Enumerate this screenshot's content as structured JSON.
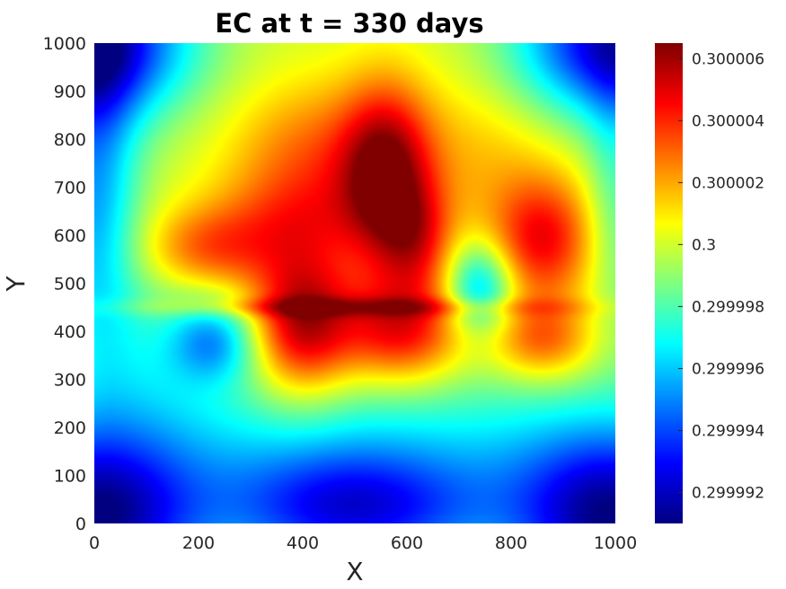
{
  "chart_data": {
    "type": "heatmap",
    "title": "EC at t = 330 days",
    "xlabel": "X",
    "ylabel": "Y",
    "xlim": [
      0,
      1000
    ],
    "ylim": [
      0,
      1000
    ],
    "x_ticks": [
      0,
      200,
      400,
      600,
      800,
      1000
    ],
    "y_ticks": [
      0,
      100,
      200,
      300,
      400,
      500,
      600,
      700,
      800,
      900,
      1000
    ],
    "colormap": "jet",
    "colorbar": {
      "min": 0.299991,
      "max": 0.3000065,
      "ticks": [
        {
          "value": 0.299992,
          "label": "0.299992"
        },
        {
          "value": 0.299994,
          "label": "0.299994"
        },
        {
          "value": 0.299996,
          "label": "0.299996"
        },
        {
          "value": 0.299998,
          "label": "0.299998"
        },
        {
          "value": 0.3,
          "label": "0.3"
        },
        {
          "value": 0.300002,
          "label": "0.300002"
        },
        {
          "value": 0.300004,
          "label": "0.300004"
        },
        {
          "value": 0.300006,
          "label": "0.300006"
        }
      ]
    },
    "field": {
      "base": 0.3,
      "features": [
        {
          "x": 400,
          "y": 420,
          "sx": 70,
          "sy": 110,
          "amp": 6e-06
        },
        {
          "x": 590,
          "y": 400,
          "sx": 85,
          "sy": 80,
          "amp": 5e-06
        },
        {
          "x": 560,
          "y": 720,
          "sx": 60,
          "sy": 130,
          "amp": 5.5e-06
        },
        {
          "x": 620,
          "y": 590,
          "sx": 50,
          "sy": 80,
          "amp": 3e-06
        },
        {
          "x": 430,
          "y": 760,
          "sx": 120,
          "sy": 110,
          "amp": 3e-06
        },
        {
          "x": 860,
          "y": 590,
          "sx": 70,
          "sy": 90,
          "amp": 4.5e-06
        },
        {
          "x": 860,
          "y": 380,
          "sx": 70,
          "sy": 60,
          "amp": 3.5e-06
        },
        {
          "x": 220,
          "y": 570,
          "sx": 90,
          "sy": 60,
          "amp": 3e-06
        },
        {
          "x": 380,
          "y": 630,
          "sx": 120,
          "sy": 70,
          "amp": 2e-06
        },
        {
          "x": 740,
          "y": 760,
          "sx": 120,
          "sy": 120,
          "amp": 1.5e-06
        },
        {
          "x": 480,
          "y": 450,
          "sx": 300,
          "sy": 14,
          "amp": 2e-06
        },
        {
          "x": 740,
          "y": 490,
          "sx": 45,
          "sy": 65,
          "amp": -4.5e-06
        },
        {
          "x": 230,
          "y": 380,
          "sx": 60,
          "sy": 60,
          "amp": -4e-06
        },
        {
          "x": 100,
          "y": 370,
          "sx": 90,
          "sy": 130,
          "amp": -1.5e-06
        },
        {
          "x": 0,
          "y": 0,
          "sx": 140,
          "sy": 130,
          "amp": -8e-06
        },
        {
          "x": 1000,
          "y": 0,
          "sx": 140,
          "sy": 130,
          "amp": -8e-06
        },
        {
          "x": 0,
          "y": 1000,
          "sx": 130,
          "sy": 110,
          "amp": -8e-06
        },
        {
          "x": 1000,
          "y": 1000,
          "sx": 130,
          "sy": 110,
          "amp": -8e-06
        },
        {
          "x": 500,
          "y": 20,
          "sx": 180,
          "sy": 90,
          "amp": -6e-06
        },
        {
          "x": 0,
          "y": 700,
          "sx": 60,
          "sy": 250,
          "amp": -4.5e-06
        },
        {
          "x": 500,
          "y": 160,
          "sx": 500,
          "sy": 130,
          "amp": -3e-06
        },
        {
          "x": 1000,
          "y": 700,
          "sx": 40,
          "sy": 200,
          "amp": -2e-06
        }
      ]
    }
  }
}
